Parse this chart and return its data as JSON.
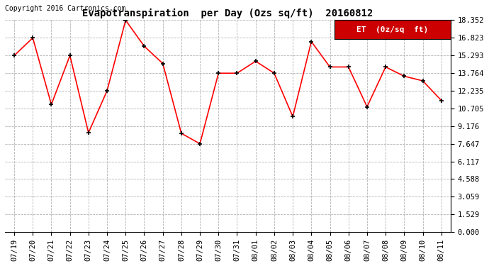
{
  "title": "Evapotranspiration  per Day (Ozs sq/ft)  20160812",
  "copyright_text": "Copyright 2016 Cartronics.com",
  "legend_label": "ET  (0z/sq  ft)",
  "x_labels": [
    "07/19",
    "07/20",
    "07/21",
    "07/22",
    "07/23",
    "07/24",
    "07/25",
    "07/26",
    "07/27",
    "07/28",
    "07/29",
    "07/30",
    "07/31",
    "08/01",
    "08/02",
    "08/03",
    "08/04",
    "08/05",
    "08/06",
    "08/07",
    "08/08",
    "08/09",
    "08/10",
    "08/11"
  ],
  "y_values": [
    15.29,
    16.82,
    11.05,
    15.29,
    8.6,
    12.24,
    18.35,
    16.1,
    14.6,
    8.55,
    7.65,
    13.76,
    13.76,
    14.8,
    13.76,
    10.0,
    16.5,
    14.3,
    14.3,
    10.85,
    14.3,
    13.5,
    13.1,
    11.4
  ],
  "y_ticks": [
    0.0,
    1.529,
    3.059,
    4.588,
    6.117,
    7.647,
    9.176,
    10.705,
    12.235,
    13.764,
    15.293,
    16.823,
    18.352
  ],
  "y_min": 0.0,
  "y_max": 18.352,
  "line_color": "red",
  "marker_color": "black",
  "marker_style": "+",
  "marker_size": 5,
  "marker_linewidth": 1.2,
  "line_width": 1.2,
  "background_color": "#ffffff",
  "grid_color": "#aaaaaa",
  "title_fontsize": 10,
  "copyright_fontsize": 7,
  "tick_fontsize": 7.5,
  "ytick_fontsize": 7.5,
  "legend_bg_color": "#cc0000",
  "legend_text_color": "#ffffff",
  "legend_fontsize": 8
}
